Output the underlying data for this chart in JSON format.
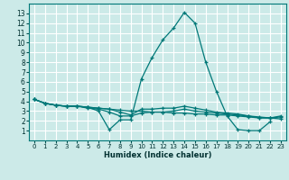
{
  "title": "",
  "xlabel": "Humidex (Indice chaleur)",
  "ylabel": "",
  "bg_color": "#cceae8",
  "grid_color": "#ffffff",
  "line_color": "#007878",
  "x_values": [
    0,
    1,
    2,
    3,
    4,
    5,
    6,
    7,
    8,
    9,
    10,
    11,
    12,
    13,
    14,
    15,
    16,
    17,
    18,
    19,
    20,
    21,
    22,
    23
  ],
  "series": [
    [
      4.2,
      3.8,
      3.6,
      3.5,
      3.5,
      3.4,
      3.0,
      1.1,
      2.1,
      2.1,
      6.3,
      8.5,
      10.3,
      11.5,
      13.1,
      12.0,
      8.0,
      5.0,
      2.5,
      1.1,
      1.0,
      1.0,
      1.9,
      null
    ],
    [
      4.2,
      3.8,
      3.6,
      3.5,
      3.5,
      3.4,
      3.3,
      3.2,
      3.1,
      3.0,
      3.0,
      2.9,
      2.9,
      2.8,
      2.8,
      2.7,
      2.7,
      2.6,
      2.6,
      2.5,
      2.4,
      2.3,
      2.3,
      2.2
    ],
    [
      4.2,
      3.8,
      3.6,
      3.5,
      3.5,
      3.3,
      3.2,
      2.9,
      2.5,
      2.5,
      2.8,
      2.9,
      2.9,
      3.0,
      3.2,
      3.0,
      2.9,
      2.8,
      2.7,
      2.6,
      2.5,
      2.4,
      2.3,
      2.4
    ],
    [
      4.2,
      3.8,
      3.6,
      3.5,
      3.5,
      3.4,
      3.3,
      3.2,
      2.9,
      2.6,
      3.2,
      3.2,
      3.3,
      3.3,
      3.5,
      3.3,
      3.1,
      2.9,
      2.8,
      2.7,
      2.5,
      2.3,
      2.3,
      2.5
    ]
  ],
  "xlim": [
    -0.5,
    23.5
  ],
  "ylim": [
    0,
    14
  ],
  "xticks": [
    0,
    1,
    2,
    3,
    4,
    5,
    6,
    7,
    8,
    9,
    10,
    11,
    12,
    13,
    14,
    15,
    16,
    17,
    18,
    19,
    20,
    21,
    22,
    23
  ],
  "yticks": [
    1,
    2,
    3,
    4,
    5,
    6,
    7,
    8,
    9,
    10,
    11,
    12,
    13
  ],
  "xlabel_fontsize": 6.0,
  "tick_fontsize_x": 5.0,
  "tick_fontsize_y": 5.5
}
